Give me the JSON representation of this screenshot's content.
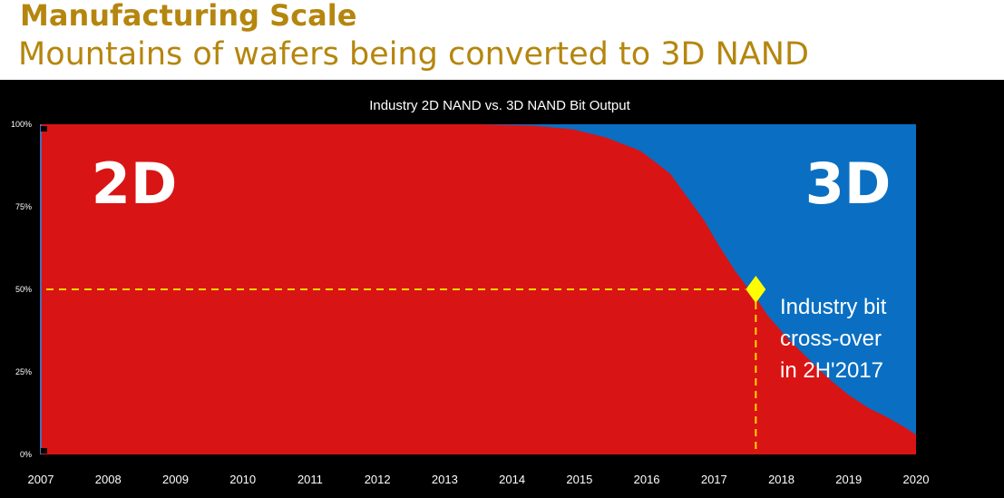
{
  "slide": {
    "title": "Manufacturing Scale",
    "subtitle": "Mountains of wafers being converted to 3D NAND"
  },
  "chart_data": {
    "type": "area",
    "title": "Industry 2D NAND vs. 3D NAND Bit Output",
    "xlabel": "",
    "ylabel": "",
    "xlim": [
      2007,
      2020
    ],
    "ylim": [
      0,
      100
    ],
    "x_ticks": [
      "2007",
      "2008",
      "2009",
      "2010",
      "2011",
      "2012",
      "2013",
      "2014",
      "2015",
      "2016",
      "2017",
      "2018",
      "2019",
      "2020"
    ],
    "y_ticks": [
      "0%",
      "25%",
      "50%",
      "75%",
      "100%"
    ],
    "y_tick_values": [
      0,
      25,
      50,
      75,
      100
    ],
    "x": [
      2007,
      2013.5,
      2014.3,
      2014.9,
      2015.4,
      2015.9,
      2016.1,
      2016.35,
      2016.6,
      2016.85,
      2017.05,
      2017.3,
      2017.5,
      2017.62,
      2017.8,
      2018.1,
      2018.4,
      2018.7,
      2019.0,
      2019.3,
      2019.6,
      2019.85,
      2020
    ],
    "series": [
      {
        "name": "2D",
        "color": "#d91414",
        "values": [
          100,
          100,
          99.6,
          98.5,
          96,
          92,
          89,
          85,
          78,
          71,
          64,
          56,
          50.5,
          47.5,
          42,
          35,
          29,
          23,
          18,
          14,
          11,
          8,
          6
        ]
      },
      {
        "name": "3D",
        "color": "#0a6fc2",
        "values": [
          0,
          0,
          0.4,
          1.5,
          4,
          8,
          11,
          15,
          22,
          29,
          36,
          44,
          49.5,
          52.5,
          58,
          65,
          71,
          77,
          82,
          86,
          89,
          92,
          94
        ]
      }
    ],
    "area_labels": {
      "left": "2D",
      "right": "3D"
    },
    "crossover": {
      "x": 2017.62,
      "y": 50,
      "marker_color": "#ffff00",
      "line_color": "#ffd700",
      "annotation": [
        "Industry bit",
        "cross-over",
        "in 2H'2017"
      ]
    },
    "grid": false,
    "legend": "none"
  }
}
